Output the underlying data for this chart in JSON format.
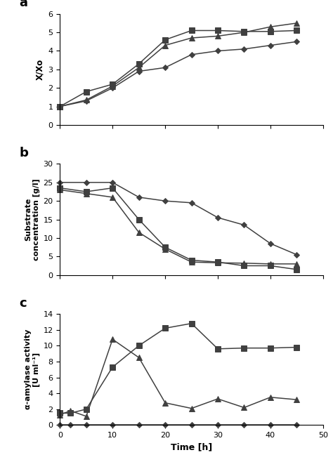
{
  "panel_a": {
    "label": "a",
    "ylabel": "X/Xo",
    "ylim": [
      0,
      6
    ],
    "yticks": [
      0,
      1,
      2,
      3,
      4,
      5,
      6
    ],
    "series": {
      "square": {
        "x": [
          0,
          5,
          10,
          15,
          20,
          25,
          30,
          35,
          40,
          45
        ],
        "y": [
          1.0,
          1.8,
          2.2,
          3.3,
          4.6,
          5.1,
          5.1,
          5.05,
          5.05,
          5.1
        ]
      },
      "triangle": {
        "x": [
          0,
          5,
          10,
          15,
          20,
          25,
          30,
          35,
          40,
          45
        ],
        "y": [
          1.0,
          1.35,
          2.1,
          3.1,
          4.3,
          4.7,
          4.8,
          5.0,
          5.3,
          5.5
        ]
      },
      "diamond": {
        "x": [
          0,
          5,
          10,
          15,
          20,
          25,
          30,
          35,
          40,
          45
        ],
        "y": [
          1.0,
          1.3,
          2.0,
          2.9,
          3.1,
          3.8,
          4.0,
          4.1,
          4.3,
          4.5
        ]
      }
    }
  },
  "panel_b": {
    "label": "b",
    "ylabel": "Substrate\nconcentration [g/l]",
    "ylim": [
      0,
      30
    ],
    "yticks": [
      0,
      5,
      10,
      15,
      20,
      25,
      30
    ],
    "series": {
      "square": {
        "x": [
          0,
          5,
          10,
          15,
          20,
          25,
          30,
          35,
          40,
          45
        ],
        "y": [
          23.5,
          22.5,
          23.5,
          15.0,
          7.5,
          4.0,
          3.5,
          2.5,
          2.5,
          1.5
        ]
      },
      "triangle": {
        "x": [
          0,
          5,
          10,
          15,
          20,
          25,
          30,
          35,
          40,
          45
        ],
        "y": [
          23.0,
          22.0,
          21.0,
          11.5,
          7.0,
          3.5,
          3.3,
          3.2,
          3.0,
          3.0
        ]
      },
      "diamond": {
        "x": [
          0,
          5,
          10,
          15,
          20,
          25,
          30,
          35,
          40,
          45
        ],
        "y": [
          25.0,
          25.0,
          25.0,
          21.0,
          20.0,
          19.5,
          15.5,
          13.5,
          8.5,
          5.5
        ]
      }
    }
  },
  "panel_c": {
    "label": "c",
    "ylabel": "α-amylase activity\n[U ml⁻¹]",
    "ylim": [
      0,
      14
    ],
    "yticks": [
      0,
      2,
      4,
      6,
      8,
      10,
      12,
      14
    ],
    "series": {
      "square": {
        "x": [
          0,
          2,
          5,
          10,
          15,
          20,
          25,
          30,
          35,
          40,
          45
        ],
        "y": [
          1.5,
          1.5,
          2.0,
          7.3,
          10.0,
          12.2,
          12.8,
          9.6,
          9.7,
          9.7,
          9.8
        ]
      },
      "triangle": {
        "x": [
          0,
          2,
          5,
          10,
          15,
          20,
          25,
          30,
          35,
          40,
          45
        ],
        "y": [
          1.3,
          1.8,
          1.1,
          10.8,
          8.5,
          2.8,
          2.1,
          3.3,
          2.2,
          3.5,
          3.2
        ]
      },
      "diamond": {
        "x": [
          0,
          2,
          5,
          10,
          15,
          20,
          25,
          30,
          35,
          40,
          45
        ],
        "y": [
          0.0,
          0.0,
          0.0,
          0.0,
          0.0,
          0.0,
          0.0,
          0.0,
          0.0,
          0.0,
          0.0
        ]
      }
    }
  },
  "xlabel": "Time [h]",
  "xlim": [
    0,
    48
  ],
  "xticks": [
    0,
    10,
    20,
    30,
    40,
    50
  ],
  "color": "#404040",
  "bg_color": "#ffffff",
  "figsize": [
    4.74,
    6.58
  ],
  "dpi": 100
}
